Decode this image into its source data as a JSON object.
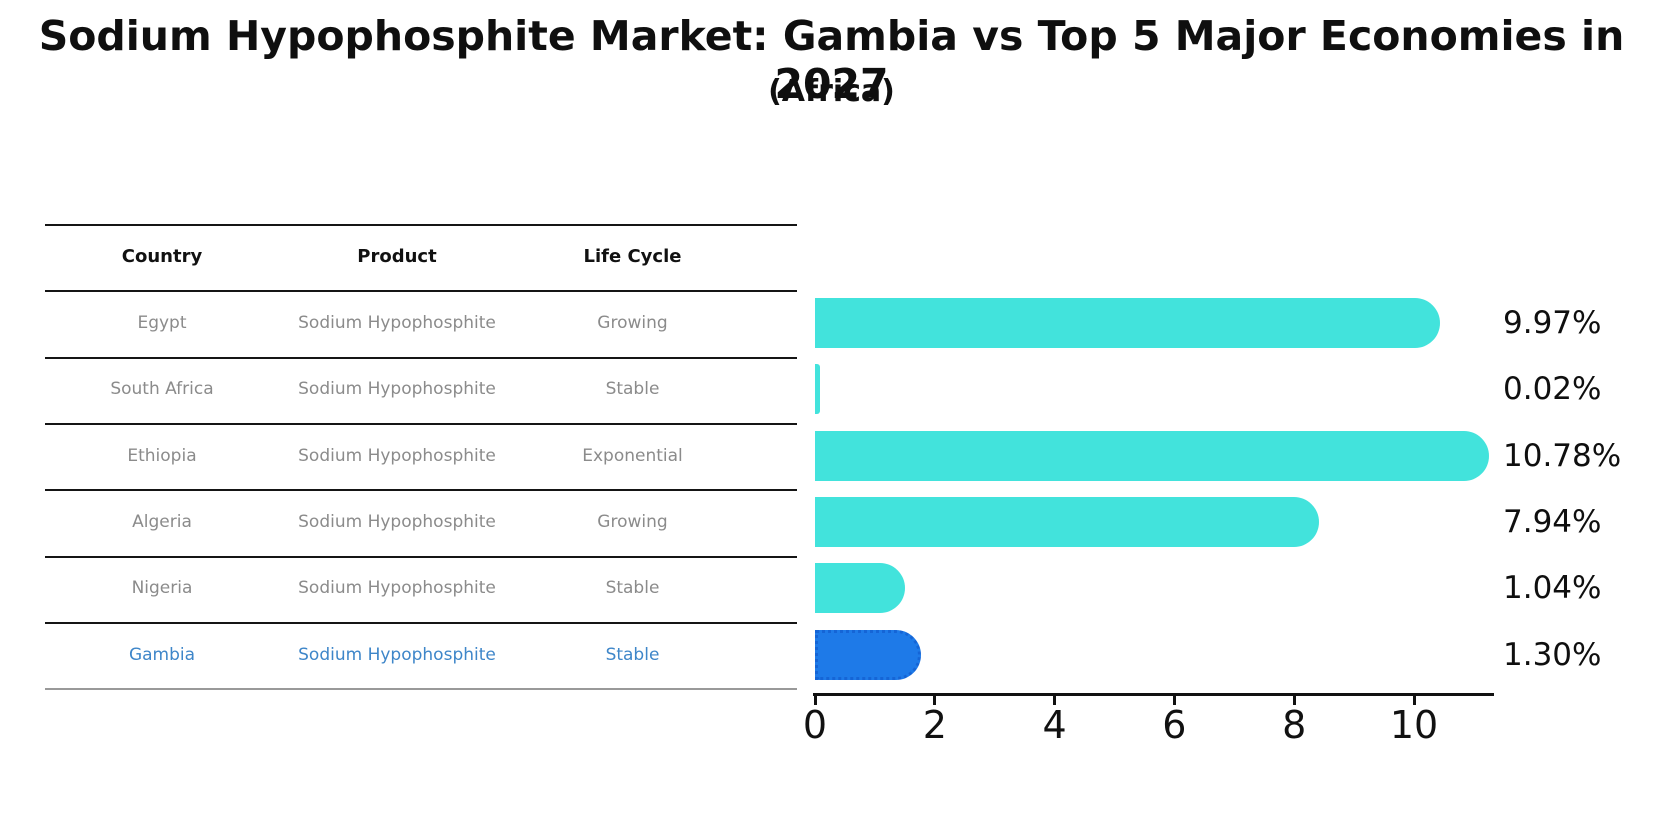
{
  "title": "Sodium Hypophosphite Market: Gambia vs Top 5 Major Economies in 2027",
  "subtitle": "(Africa)",
  "table": {
    "headers": [
      "Country",
      "Product",
      "Life Cycle"
    ],
    "rows": [
      {
        "country": "Egypt",
        "product": "Sodium Hypophosphite",
        "life_cycle": "Growing",
        "highlight": false
      },
      {
        "country": "South Africa",
        "product": "Sodium Hypophosphite",
        "life_cycle": "Stable",
        "highlight": false
      },
      {
        "country": "Ethiopia",
        "product": "Sodium Hypophosphite",
        "life_cycle": "Exponential",
        "highlight": false
      },
      {
        "country": "Algeria",
        "product": "Sodium Hypophosphite",
        "life_cycle": "Growing",
        "highlight": false
      },
      {
        "country": "Nigeria",
        "product": "Sodium Hypophosphite",
        "life_cycle": "Stable",
        "highlight": false
      },
      {
        "country": "Gambia",
        "product": "Sodium Hypophosphite",
        "life_cycle": "Stable",
        "highlight": true
      }
    ]
  },
  "chart_data": {
    "type": "bar",
    "orientation": "horizontal",
    "categories": [
      "Egypt",
      "South Africa",
      "Ethiopia",
      "Algeria",
      "Nigeria",
      "Gambia"
    ],
    "values": [
      9.97,
      0.02,
      10.78,
      7.94,
      1.04,
      1.3
    ],
    "value_labels": [
      "9.97%",
      "0.02%",
      "10.78%",
      "7.94%",
      "1.04%",
      "1.30%"
    ],
    "x_ticks": [
      0,
      2,
      4,
      6,
      8,
      10
    ],
    "xlim": [
      0,
      11.35
    ],
    "grid": false,
    "legend": "none",
    "highlight_index": 5,
    "highlight_style": "dotted-border"
  },
  "colors": {
    "bar": "#42e3dc",
    "highlight_bar": "#1e7ae8",
    "highlight_border": "#1565d6",
    "highlight_text": "#3e86c9",
    "table_text": "#8b8b8b",
    "header_text": "#111111",
    "axis": "#111111"
  }
}
